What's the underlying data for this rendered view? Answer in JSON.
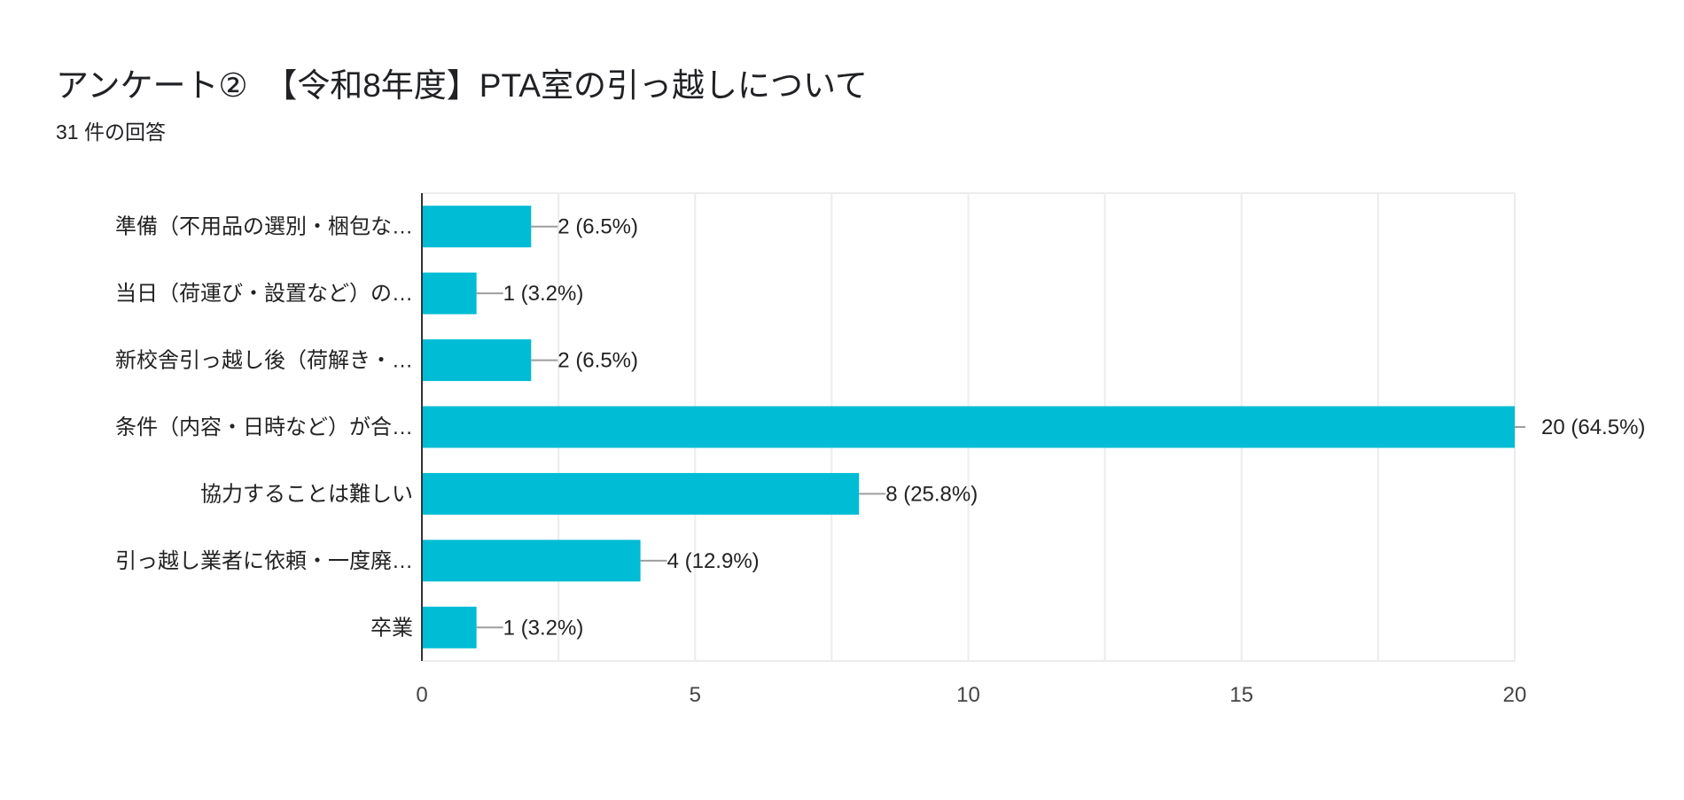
{
  "header": {
    "title": "アンケート②　【令和8年度】PTA室の引っ越しについて",
    "subtitle": "31 件の回答"
  },
  "colors": {
    "bar": "#00bcd4",
    "grid": "#ececec",
    "axis": "#333333",
    "leader": "#9e9e9e"
  },
  "chart_data": {
    "type": "bar",
    "orientation": "horizontal",
    "title": "アンケート②　【令和8年度】PTA室の引っ越しについて",
    "subtitle": "31 件の回答",
    "categories": [
      "準備（不用品の選別・梱包な…",
      "当日（荷運び・設置など）の…",
      "新校舎引っ越し後（荷解き・…",
      "条件（内容・日時など）が合…",
      "協力することは難しい",
      "引っ越し業者に依頼・一度廃…",
      "卒業"
    ],
    "values": [
      2,
      1,
      2,
      20,
      8,
      4,
      1
    ],
    "data_labels": [
      "2 (6.5%)",
      "1 (3.2%)",
      "2 (6.5%)",
      "20 (64.5%)",
      "8 (25.8%)",
      "4 (12.9%)",
      "1 (3.2%)"
    ],
    "xlim": [
      0,
      20
    ],
    "xticks": [
      "0",
      "5",
      "10",
      "15",
      "20"
    ],
    "minor_gridlines_every": 2.5,
    "xlabel": "",
    "ylabel": "",
    "grid": true,
    "legend": "none"
  }
}
